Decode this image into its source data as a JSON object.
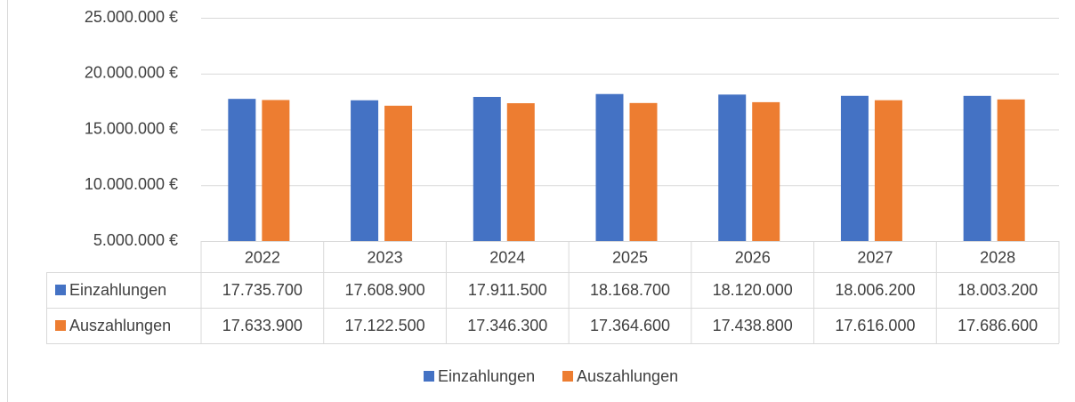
{
  "chart_data": {
    "type": "bar",
    "categories": [
      "2022",
      "2023",
      "2024",
      "2025",
      "2026",
      "2027",
      "2028"
    ],
    "series": [
      {
        "name": "Einzahlungen",
        "color": "#4472c4",
        "values": [
          17735700,
          17608900,
          17911500,
          18168700,
          18120000,
          18006200,
          18003200
        ],
        "value_labels": [
          "17.735.700",
          "17.608.900",
          "17.911.500",
          "18.168.700",
          "18.120.000",
          "18.006.200",
          "18.003.200"
        ]
      },
      {
        "name": "Auszahlungen",
        "color": "#ed7d31",
        "values": [
          17633900,
          17122500,
          17346300,
          17364600,
          17438800,
          17616000,
          17686600
        ],
        "value_labels": [
          "17.633.900",
          "17.122.500",
          "17.346.300",
          "17.364.600",
          "17.438.800",
          "17.616.000",
          "17.686.600"
        ]
      }
    ],
    "ylim": [
      5000000,
      25000000
    ],
    "yticks": [
      {
        "value": 5000000,
        "label": "5.000.000 €"
      },
      {
        "value": 10000000,
        "label": "10.000.000 €"
      },
      {
        "value": 15000000,
        "label": "15.000.000 €"
      },
      {
        "value": 20000000,
        "label": "20.000.000 €"
      },
      {
        "value": 25000000,
        "label": "25.000.000 €"
      }
    ],
    "grid": true,
    "legend": "bottom"
  }
}
